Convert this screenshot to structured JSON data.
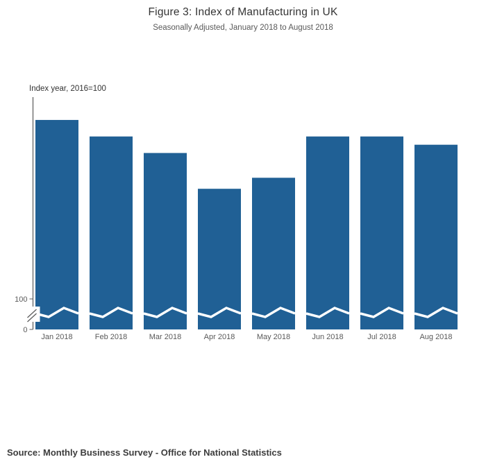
{
  "header": {
    "title": "Figure 3: Index of Manufacturing in UK",
    "subtitle": "Seasonally Adjusted, January 2018 to August 2018"
  },
  "footer": {
    "source": "Source: Monthly Business Survey - Office for National Statistics"
  },
  "colors": {
    "bar": "#206095",
    "axis": "#595959",
    "tick_text": "#595959",
    "break_mark": "#ffffff"
  },
  "chart_data": {
    "type": "bar",
    "title": "Figure 3: Index of Manufacturing in UK",
    "subtitle": "Seasonally Adjusted, January 2018 to August 2018",
    "ylabel": "Index year, 2016=100",
    "xlabel": "",
    "categories": [
      "Jan 2018",
      "Feb 2018",
      "Mar 2018",
      "Apr 2018",
      "May 2018",
      "Jun 2018",
      "Jul 2018",
      "Aug 2018"
    ],
    "values": [
      106.5,
      105.9,
      105.3,
      104.0,
      104.4,
      105.9,
      105.9,
      105.6
    ],
    "yticks": [
      0,
      100
    ],
    "ylim": [
      0,
      107
    ],
    "axis_break": true,
    "grid": false,
    "legend": "none"
  }
}
